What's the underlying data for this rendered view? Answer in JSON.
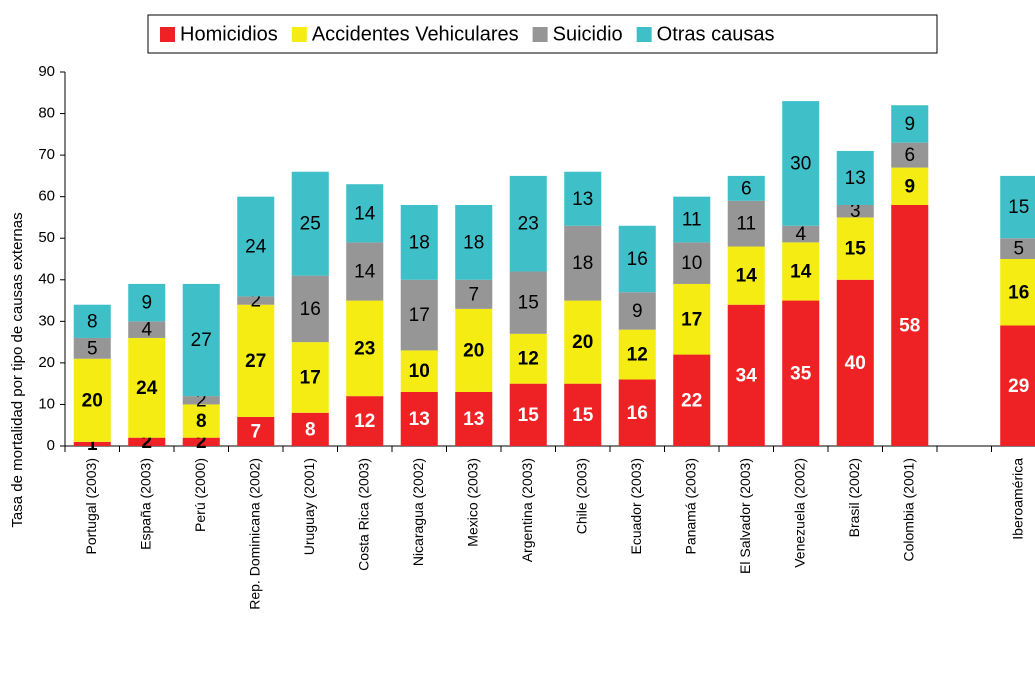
{
  "chart_data": {
    "type": "stacked_bar",
    "y_label": "Tasa de mortalidad por tipo de causas externas",
    "categories": [
      "Portugal (2003)",
      "España (2003)",
      "Perú (2000)",
      "Rep. Dominicana (2002)",
      "Uruguay (2001)",
      "Costa Rica (2003)",
      "Nicaragua (2002)",
      "Mexico (2003)",
      "Argentina (2003)",
      "Chile (2003)",
      "Ecuador (2003)",
      "Panamá (2003)",
      "El Salvador (2003)",
      "Venezuela (2002)",
      "Brasil (2002)",
      "Colombia (2001)",
      null,
      "Iberoamérica"
    ],
    "series": [
      {
        "name": "Homicidios",
        "color": "#ee2224",
        "values": [
          1,
          2,
          2,
          7,
          8,
          12,
          13,
          13,
          15,
          15,
          16,
          22,
          34,
          35,
          40,
          58,
          null,
          29
        ]
      },
      {
        "name": "Accidentes Vehiculares",
        "color": "#f5ec13",
        "values": [
          20,
          24,
          8,
          27,
          17,
          23,
          10,
          20,
          12,
          20,
          12,
          17,
          14,
          14,
          15,
          9,
          null,
          16
        ]
      },
      {
        "name": "Suicidio",
        "color": "#969696",
        "values": [
          5,
          4,
          2,
          2,
          16,
          14,
          17,
          7,
          15,
          18,
          9,
          10,
          11,
          4,
          3,
          6,
          null,
          5
        ]
      },
      {
        "name": "Otras causas",
        "color": "#3fc0c9",
        "values": [
          8,
          9,
          27,
          24,
          25,
          14,
          18,
          18,
          23,
          13,
          16,
          11,
          6,
          30,
          13,
          9,
          null,
          15
        ]
      }
    ],
    "ylim": [
      0,
      90
    ],
    "yticks": [
      0,
      10,
      20,
      30,
      40,
      50,
      60,
      70,
      80,
      90
    ],
    "legend": "top"
  }
}
